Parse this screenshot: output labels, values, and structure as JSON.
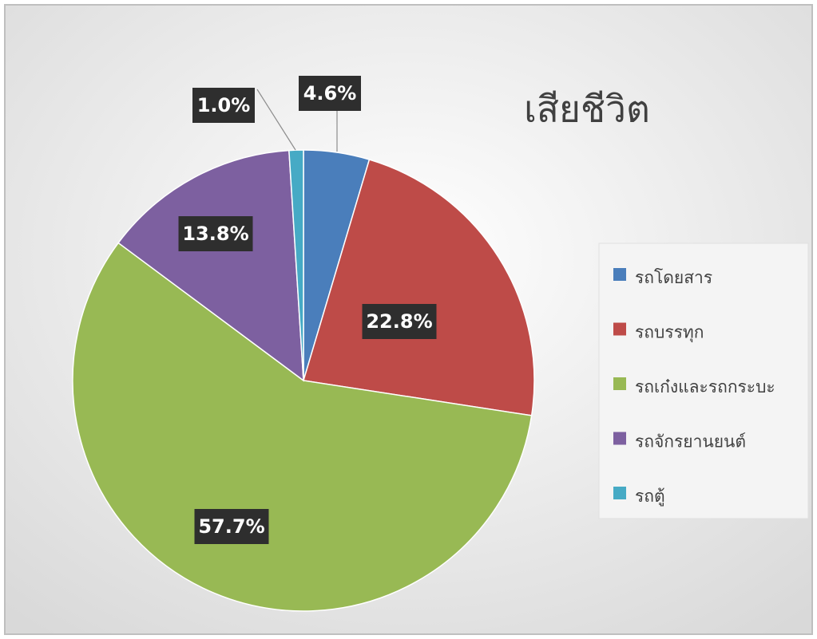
{
  "chart_data": {
    "type": "pie",
    "title": "เสียชีวิต",
    "categories": [
      "รถโดยสาร",
      "รถบรรทุก",
      "รถเก๋งและรถกระบะ",
      "รถจักรยานยนต์",
      "รถตู้"
    ],
    "values": [
      4.6,
      22.8,
      57.7,
      13.8,
      1.0
    ],
    "value_labels": [
      "4.6%",
      "22.8%",
      "57.7%",
      "13.8%",
      "1.0%"
    ],
    "colors": [
      "#4a7ebb",
      "#be4b48",
      "#98b954",
      "#7d60a0",
      "#46aac5"
    ],
    "legend": "right"
  }
}
